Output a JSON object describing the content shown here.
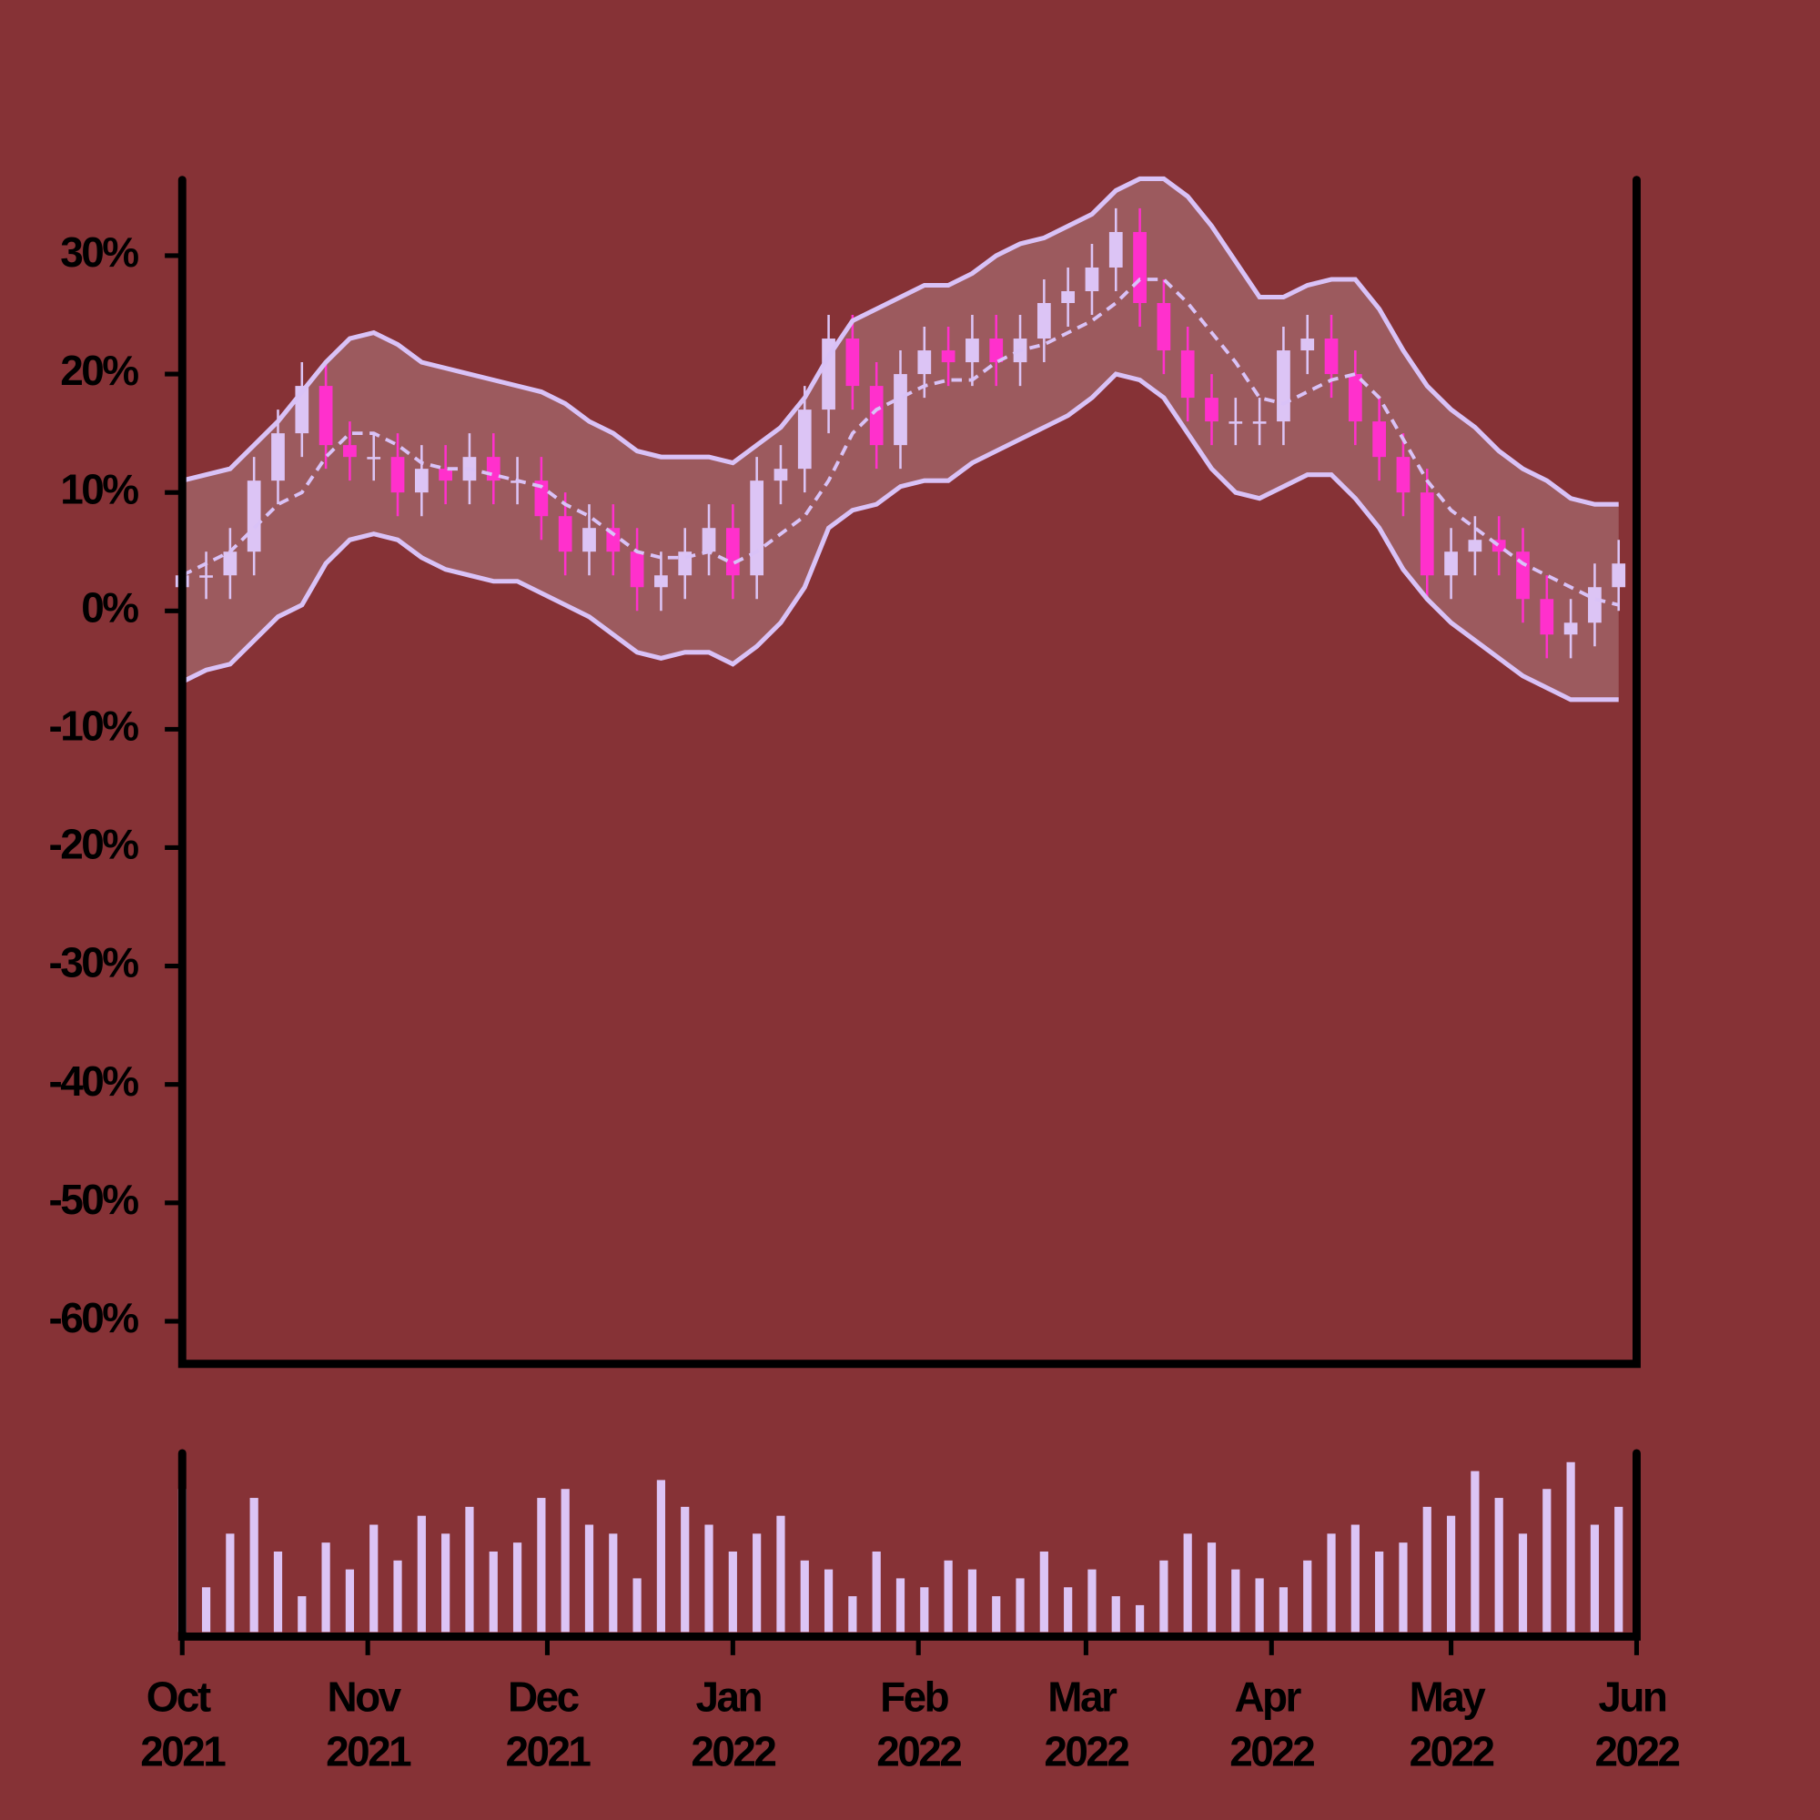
{
  "chart_data": [
    {
      "type": "candlestick",
      "x": [
        0,
        4,
        8,
        12,
        16,
        20,
        24,
        28,
        32,
        36,
        40,
        44,
        48,
        52,
        56,
        60,
        64,
        68,
        72,
        76,
        80,
        84,
        88,
        92,
        96,
        100,
        104,
        108,
        112,
        116,
        120,
        124,
        128,
        132,
        136,
        140,
        144,
        148,
        152,
        156,
        160,
        164,
        168,
        172,
        176,
        180,
        184,
        188,
        192,
        196,
        200,
        204,
        208,
        212,
        216,
        220,
        224,
        228,
        232,
        236,
        240
      ],
      "open": [
        2,
        3,
        3,
        5,
        11,
        15,
        19,
        14,
        13,
        13,
        10,
        12,
        11,
        13,
        11,
        11,
        8,
        5,
        7,
        5,
        2,
        3,
        5,
        7,
        3,
        11,
        12,
        17,
        23,
        19,
        14,
        20,
        22,
        21,
        23,
        21,
        23,
        26,
        27,
        29,
        32,
        26,
        22,
        18,
        16,
        16,
        16,
        22,
        23,
        20,
        16,
        13,
        10,
        3,
        5,
        6,
        5,
        1,
        -2,
        -1,
        2
      ],
      "high": [
        5,
        5,
        7,
        13,
        17,
        21,
        21,
        16,
        15,
        15,
        14,
        14,
        15,
        15,
        13,
        13,
        10,
        9,
        9,
        7,
        5,
        7,
        9,
        9,
        13,
        14,
        19,
        25,
        25,
        21,
        22,
        24,
        24,
        25,
        25,
        25,
        28,
        29,
        31,
        34,
        34,
        28,
        24,
        20,
        18,
        18,
        24,
        25,
        25,
        22,
        18,
        15,
        12,
        7,
        8,
        8,
        7,
        3,
        1,
        4,
        6
      ],
      "low": [
        0,
        1,
        1,
        3,
        9,
        13,
        12,
        11,
        11,
        8,
        8,
        9,
        9,
        9,
        9,
        6,
        3,
        3,
        3,
        0,
        0,
        1,
        3,
        1,
        1,
        9,
        10,
        15,
        17,
        12,
        12,
        18,
        19,
        19,
        19,
        19,
        21,
        24,
        25,
        27,
        24,
        20,
        16,
        14,
        14,
        14,
        14,
        20,
        18,
        14,
        11,
        8,
        1,
        1,
        3,
        3,
        -1,
        -4,
        -4,
        -3,
        0
      ],
      "close": [
        3,
        3,
        5,
        11,
        15,
        19,
        14,
        13,
        13,
        10,
        12,
        11,
        13,
        11,
        11,
        8,
        5,
        7,
        5,
        2,
        3,
        5,
        7,
        3,
        11,
        12,
        17,
        23,
        19,
        14,
        20,
        22,
        21,
        23,
        21,
        23,
        26,
        27,
        29,
        32,
        26,
        22,
        18,
        16,
        16,
        16,
        22,
        23,
        20,
        16,
        13,
        10,
        3,
        5,
        6,
        5,
        1,
        -2,
        -1,
        2,
        4
      ],
      "up_color": "#dcc4f5",
      "down_color": "#ff30cc",
      "upper": [
        11,
        11.5,
        12,
        14,
        16,
        18.5,
        21,
        23,
        23.5,
        22.5,
        21,
        20.5,
        20,
        19.5,
        19,
        18.5,
        17.5,
        16,
        15,
        13.5,
        13,
        13,
        13,
        12.5,
        14,
        15.5,
        18,
        21.5,
        24.5,
        25.5,
        26.5,
        27.5,
        27.5,
        28.5,
        30,
        31,
        31.5,
        32.5,
        33.5,
        35.5,
        36.5,
        36.5,
        35,
        32.5,
        29.5,
        26.5,
        26.5,
        27.5,
        28,
        28,
        25.5,
        22,
        19,
        17,
        15.5,
        13.5,
        12,
        11,
        9.5,
        9,
        9
      ],
      "middle": [
        3,
        4,
        5,
        7,
        9,
        10,
        13,
        15,
        15,
        14,
        12.5,
        12,
        12,
        11.5,
        11,
        10.5,
        9,
        8,
        6.5,
        5,
        4.5,
        4.5,
        5,
        4,
        5,
        6.5,
        8,
        11,
        15,
        17,
        18,
        19,
        19.5,
        19.5,
        21,
        22,
        22.5,
        23.5,
        24.5,
        26,
        28,
        28,
        26,
        23.5,
        21,
        18,
        17.5,
        18.5,
        19.5,
        20,
        18,
        14.5,
        11,
        8.5,
        7,
        5.5,
        4,
        3,
        2,
        1,
        0.5
      ],
      "lower": [
        -6,
        -5,
        -4.5,
        -2.5,
        -0.5,
        0.5,
        4,
        6,
        6.5,
        6,
        4.5,
        3.5,
        3,
        2.5,
        2.5,
        1.5,
        0.5,
        -0.5,
        -2,
        -3.5,
        -4,
        -3.5,
        -3.5,
        -4.5,
        -3,
        -1,
        2,
        7,
        8.5,
        9,
        10.5,
        11,
        11,
        12.5,
        13.5,
        14.5,
        15.5,
        16.5,
        18,
        20,
        19.5,
        18,
        15,
        12,
        10,
        9.5,
        10.5,
        11.5,
        11.5,
        9.5,
        7,
        3.5,
        1,
        -1,
        -2.5,
        -4,
        -5.5,
        -6.5,
        -7.5,
        -7.5,
        -7.5
      ],
      "band_color": "#d9c2f7",
      "band_fill": "#9c5a5e",
      "xlim": [
        0,
        243
      ],
      "ylim": [
        -63.6,
        36.4
      ],
      "yticks": [
        {
          "value": 30,
          "label": "30%"
        },
        {
          "value": 20,
          "label": "20%"
        },
        {
          "value": 10,
          "label": "10%"
        },
        {
          "value": 0,
          "label": "0%"
        },
        {
          "value": -10,
          "label": "-10%"
        },
        {
          "value": -20,
          "label": "-20%"
        },
        {
          "value": -30,
          "label": "-30%"
        },
        {
          "value": -40,
          "label": "-40%"
        },
        {
          "value": -50,
          "label": "-50%"
        },
        {
          "value": -60,
          "label": "-60%"
        }
      ]
    },
    {
      "type": "bar",
      "x": [
        0,
        4,
        8,
        12,
        16,
        20,
        24,
        28,
        32,
        36,
        40,
        44,
        48,
        52,
        56,
        60,
        64,
        68,
        72,
        76,
        80,
        84,
        88,
        92,
        96,
        100,
        104,
        108,
        112,
        116,
        120,
        124,
        128,
        132,
        136,
        140,
        144,
        148,
        152,
        156,
        160,
        164,
        168,
        172,
        176,
        180,
        184,
        188,
        192,
        196,
        200,
        204,
        208,
        212,
        216,
        220,
        224,
        228,
        232,
        236,
        240
      ],
      "values": [
        80,
        25,
        55,
        75,
        45,
        20,
        50,
        35,
        60,
        40,
        65,
        55,
        70,
        45,
        50,
        75,
        80,
        60,
        55,
        30,
        85,
        70,
        60,
        45,
        55,
        65,
        40,
        35,
        20,
        45,
        30,
        25,
        40,
        35,
        20,
        30,
        45,
        25,
        35,
        20,
        15,
        40,
        55,
        50,
        35,
        30,
        25,
        40,
        55,
        60,
        45,
        50,
        70,
        65,
        90,
        75,
        55,
        80,
        95,
        60,
        70
      ],
      "color": "#dcc4f5",
      "xlim": [
        0,
        243
      ],
      "ylim": [
        0,
        100
      ],
      "xticks": [
        {
          "value": 0,
          "label": "Oct 2021"
        },
        {
          "value": 31,
          "label": "Nov 2021"
        },
        {
          "value": 61,
          "label": "Dec 2021"
        },
        {
          "value": 92,
          "label": "Jan 2022"
        },
        {
          "value": 123,
          "label": "Feb 2022"
        },
        {
          "value": 151,
          "label": "Mar 2022"
        },
        {
          "value": 182,
          "label": "Apr 2022"
        },
        {
          "value": 212,
          "label": "May 2022"
        },
        {
          "value": 243,
          "label": "Jun 2022"
        }
      ]
    }
  ]
}
